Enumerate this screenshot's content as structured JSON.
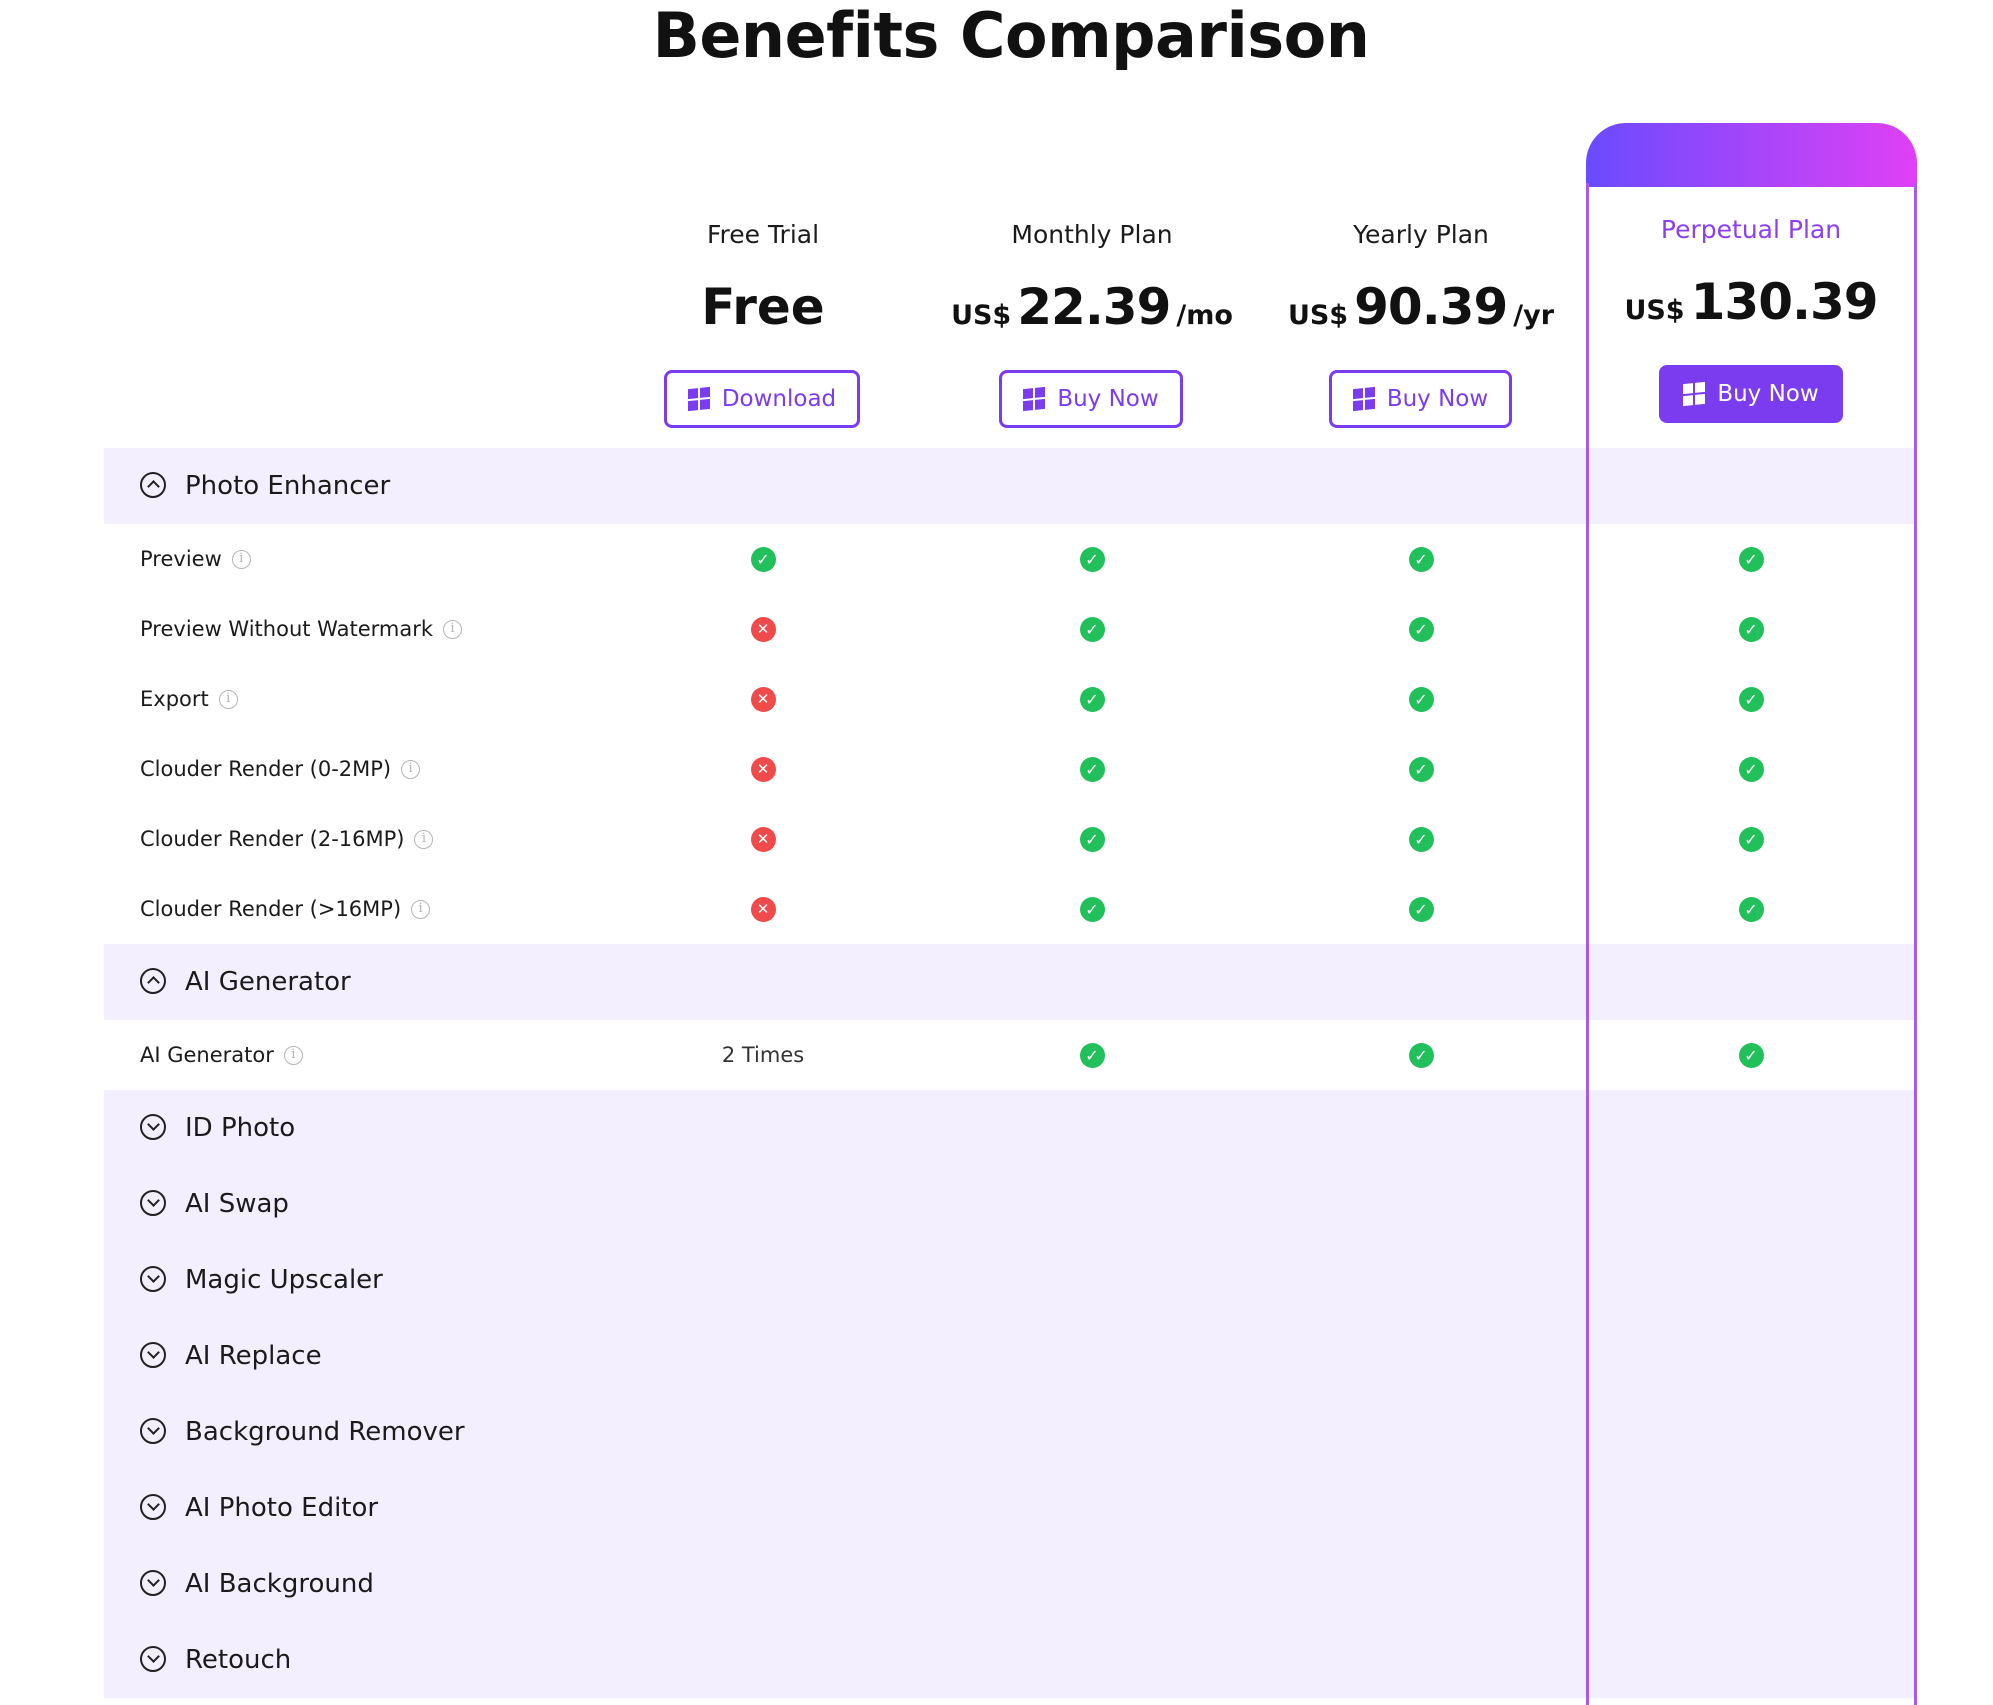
{
  "title": "Benefits Comparison",
  "plans": [
    {
      "name": "Free Trial",
      "price_text": "Free",
      "button": "Download"
    },
    {
      "name": "Monthly Plan",
      "currency": "US$",
      "amount": "22.39",
      "period": "/mo",
      "button": "Buy Now"
    },
    {
      "name": "Yearly Plan",
      "currency": "US$",
      "amount": "90.39",
      "period": "/yr",
      "button": "Buy Now"
    },
    {
      "name": "Perpetual Plan",
      "currency": "US$",
      "amount": "130.39",
      "button": "Buy Now"
    }
  ],
  "sections": [
    {
      "label": "Photo Enhancer",
      "expanded": true,
      "features": [
        {
          "label": "Preview",
          "values": [
            "yes",
            "yes",
            "yes",
            "yes"
          ]
        },
        {
          "label": "Preview Without Watermark",
          "values": [
            "no",
            "yes",
            "yes",
            "yes"
          ]
        },
        {
          "label": "Export",
          "values": [
            "no",
            "yes",
            "yes",
            "yes"
          ]
        },
        {
          "label": "Clouder Render  (0-2MP)",
          "values": [
            "no",
            "yes",
            "yes",
            "yes"
          ]
        },
        {
          "label": "Clouder Render  (2-16MP)",
          "values": [
            "no",
            "yes",
            "yes",
            "yes"
          ]
        },
        {
          "label": "Clouder Render  (>16MP)",
          "values": [
            "no",
            "yes",
            "yes",
            "yes"
          ]
        }
      ]
    },
    {
      "label": "AI Generator",
      "expanded": true,
      "features": [
        {
          "label": "AI Generator",
          "values": [
            "2 Times",
            "yes",
            "yes",
            "yes"
          ]
        }
      ]
    },
    {
      "label": "ID Photo",
      "expanded": false
    },
    {
      "label": "AI Swap",
      "expanded": false
    },
    {
      "label": "Magic Upscaler",
      "expanded": false
    },
    {
      "label": "AI Replace",
      "expanded": false
    },
    {
      "label": "Background Remover",
      "expanded": false
    },
    {
      "label": "AI Photo Editor",
      "expanded": false
    },
    {
      "label": "AI Background",
      "expanded": false
    },
    {
      "label": "Retouch",
      "expanded": false
    }
  ],
  "colors": {
    "accent": "#7b3cf0",
    "section_bg": "#f3effe",
    "check": "#22c05a",
    "cross": "#f04a4a",
    "perpetual_gradient_start": "#6a4bff",
    "perpetual_gradient_end": "#e040f5"
  },
  "icons": {
    "check": "check-circle-icon",
    "cross": "x-circle-icon",
    "info": "info-icon",
    "windows": "windows-icon"
  }
}
